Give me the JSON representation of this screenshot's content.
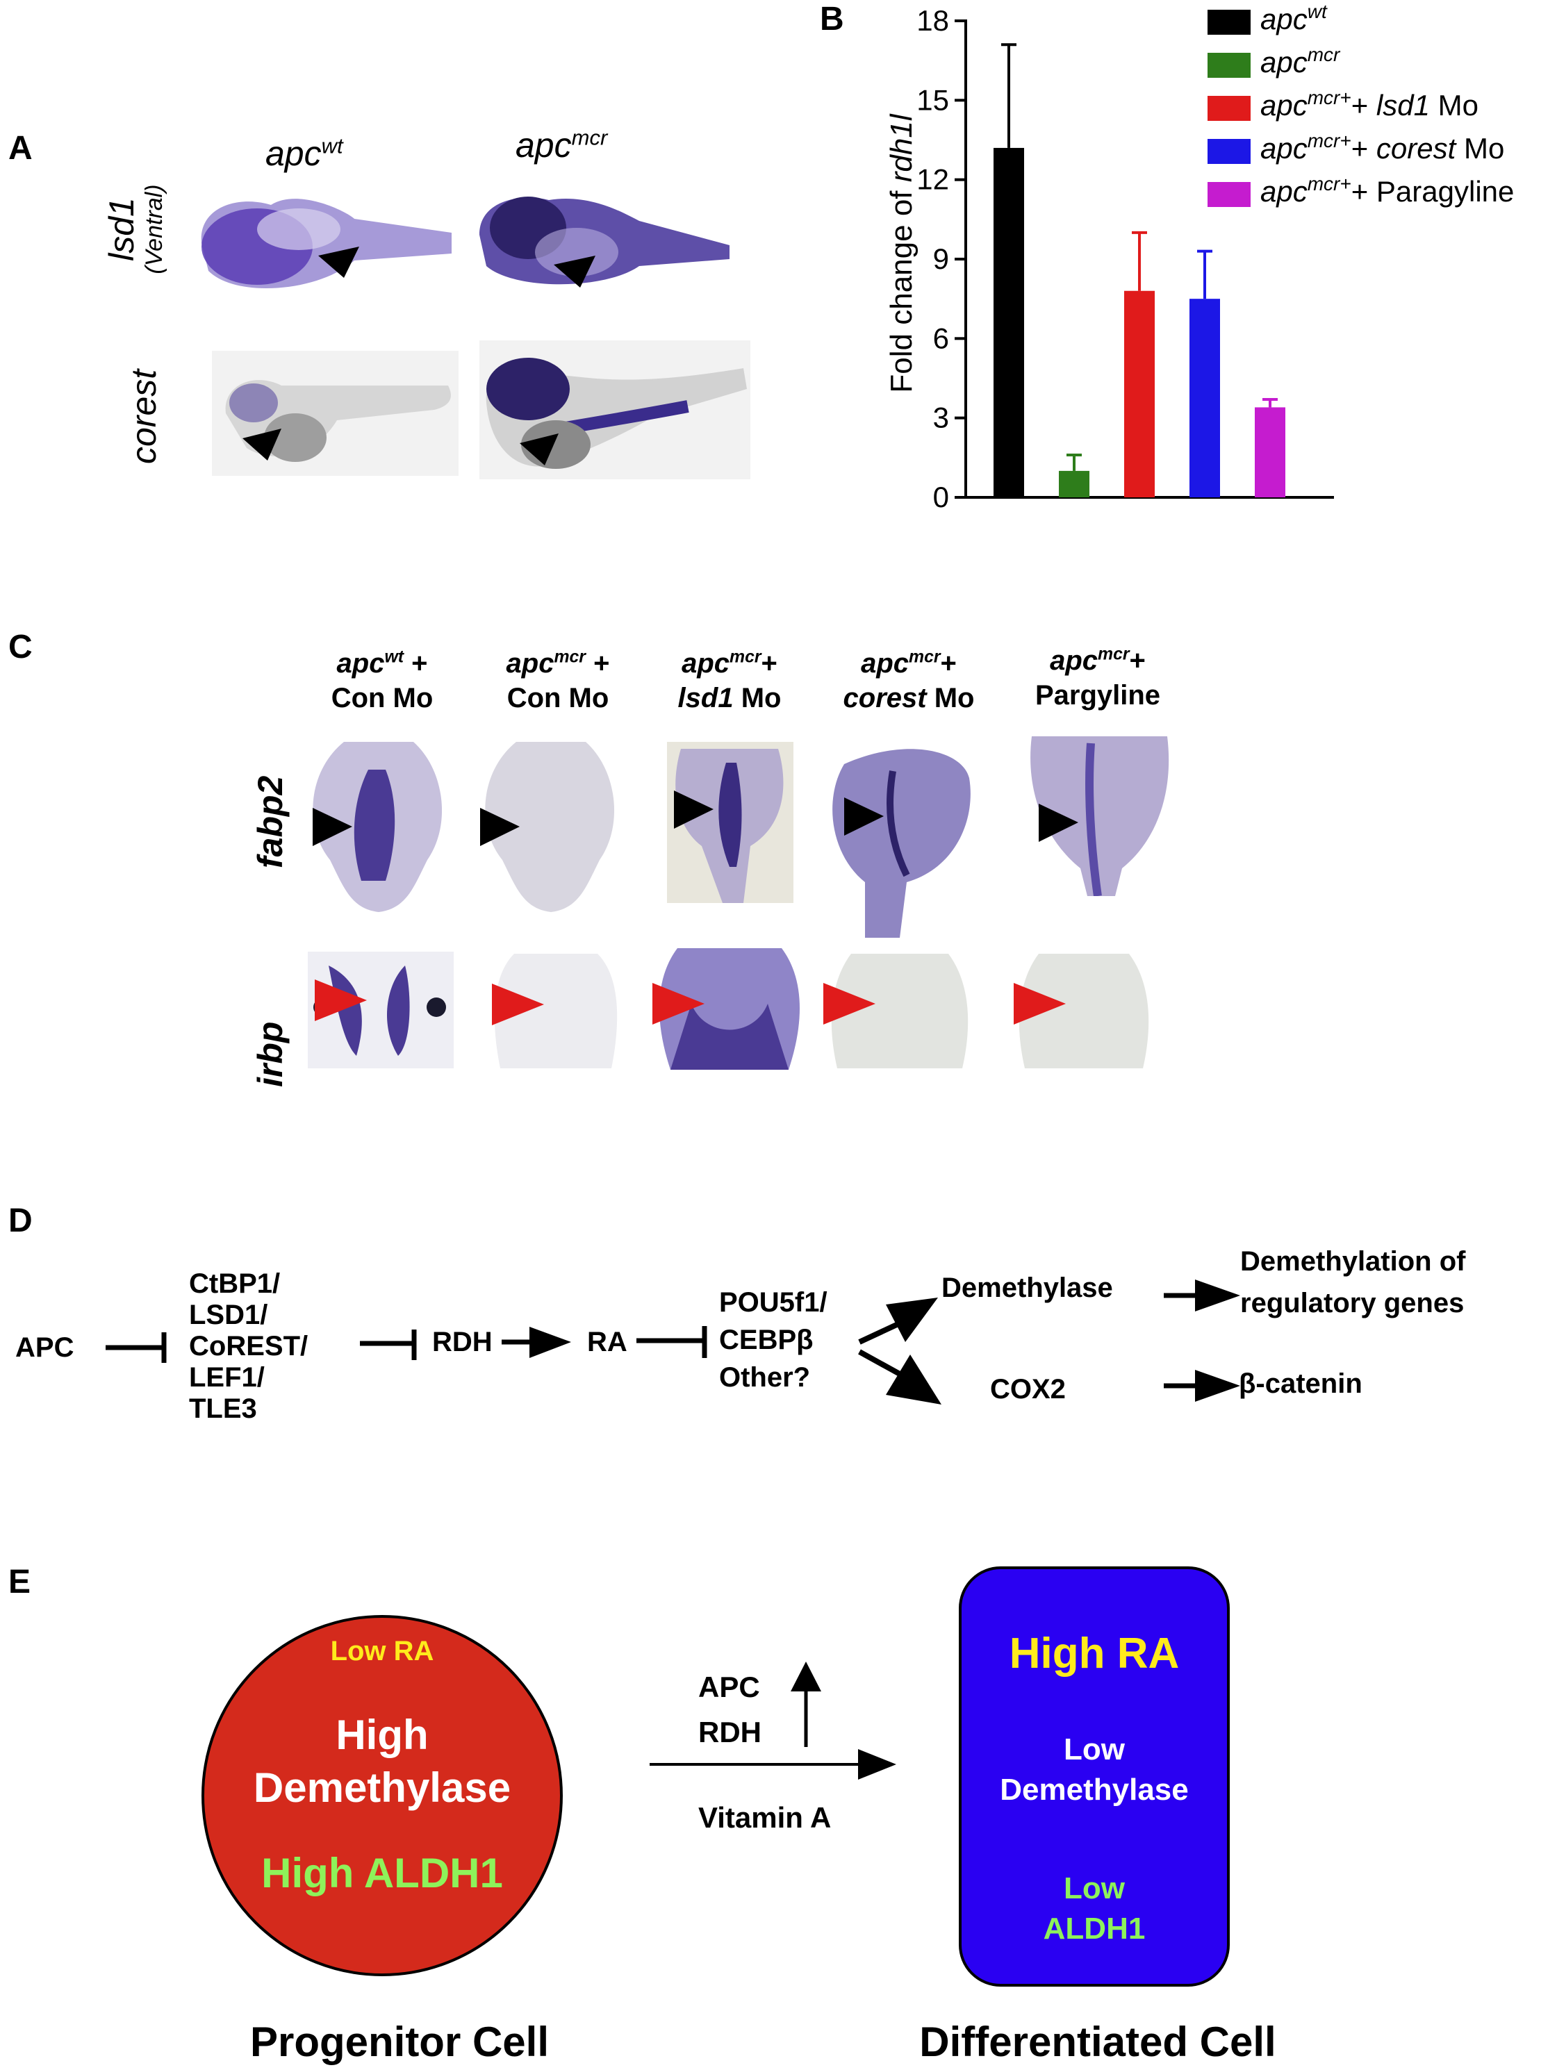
{
  "panels": {
    "A": "A",
    "B": "B",
    "C": "C",
    "D": "D",
    "E": "E"
  },
  "panel_a": {
    "col1_base": "apc",
    "col1_sup": "wt",
    "col2_base": "apc",
    "col2_sup": "mcr",
    "row1_label": "lsd1",
    "row1_sub": "(Ventral)",
    "row2_label": "corest"
  },
  "chart_data": {
    "type": "bar",
    "categories": [
      "apc^wt",
      "apc^mcr",
      "apc^mcr+ + lsd1 Mo",
      "apc^mcr+ + corest Mo",
      "apc^mcr+ + Paragyline"
    ],
    "values": [
      13.2,
      1.0,
      7.8,
      7.5,
      3.4
    ],
    "errors": [
      3.9,
      0.6,
      2.2,
      1.8,
      0.3
    ],
    "colors": [
      "#000000",
      "#2e7d1b",
      "#e01b1b",
      "#1c17e6",
      "#c51ccf"
    ],
    "ylabel": "Fold change of rdh1l",
    "ylim": [
      0,
      18
    ],
    "yticks": [
      0,
      3,
      6,
      9,
      12,
      15,
      18
    ],
    "legend_position": "top-right",
    "legend": [
      {
        "base": "apc",
        "sup": "wt",
        "tail": "",
        "tail_it": "",
        "tail_end": ""
      },
      {
        "base": "apc",
        "sup": "mcr",
        "tail": "",
        "tail_it": "",
        "tail_end": ""
      },
      {
        "base": "apc",
        "sup": "mcr+",
        "tail": "+ ",
        "tail_it": "lsd1",
        "tail_end": " Mo"
      },
      {
        "base": "apc",
        "sup": "mcr+",
        "tail": "+ ",
        "tail_it": "corest",
        "tail_end": " Mo"
      },
      {
        "base": "apc",
        "sup": "mcr+",
        "tail": "+ Paragyline",
        "tail_it": "",
        "tail_end": ""
      }
    ]
  },
  "panel_c": {
    "col1": {
      "base": "apc",
      "sup": "wt",
      "rest": " +",
      "line2": "Con Mo"
    },
    "col2": {
      "base": "apc",
      "sup": "mcr",
      "rest": " +",
      "line2": "Con Mo"
    },
    "col3": {
      "base": "apc",
      "sup": "mcr",
      "rest": "+",
      "line2_it": "lsd1",
      "line2_rest": " Mo"
    },
    "col4": {
      "base": "apc",
      "sup": "mcr",
      "rest": "+",
      "line2_it": "corest",
      "line2_rest": " Mo"
    },
    "col5": {
      "base": "apc",
      "sup": "mcr",
      "rest": "+",
      "line2": "Pargyline"
    },
    "row1_label": "fabp2",
    "row2_label": "irbp"
  },
  "panel_d": {
    "apc": "APC",
    "complex": [
      "CtBP1/",
      "LSD1/",
      "CoREST/",
      "LEF1/",
      "TLE3"
    ],
    "rdh": "RDH",
    "ra": "RA",
    "tf": [
      "POU5f1/",
      "CEBPβ",
      "Other?"
    ],
    "demethylase": "Demethylase",
    "demethylation": [
      "Demethylation of",
      "regulatory genes"
    ],
    "cox2": "COX2",
    "catenin": "β-catenin"
  },
  "panel_e": {
    "progenitor": {
      "low_ra": "Low RA",
      "high_demethylase_1": "High",
      "high_demethylase_2": "Demethylase",
      "high_aldh1": "High ALDH1",
      "caption": "Progenitor Cell"
    },
    "arrow": {
      "apc": "APC",
      "rdh": "RDH",
      "vitamin": "Vitamin A"
    },
    "differentiated": {
      "high_ra": "High RA",
      "low_demethylase_1": "Low",
      "low_demethylase_2": "Demethylase",
      "low_aldh1_1": "Low",
      "low_aldh1_2": "ALDH1",
      "caption": "Differentiated Cell"
    },
    "colors": {
      "red_cell": "#d42a1c",
      "blue_cell": "#2a00f2",
      "yellow": "#ffeb1c",
      "green": "#8ef25a"
    }
  }
}
